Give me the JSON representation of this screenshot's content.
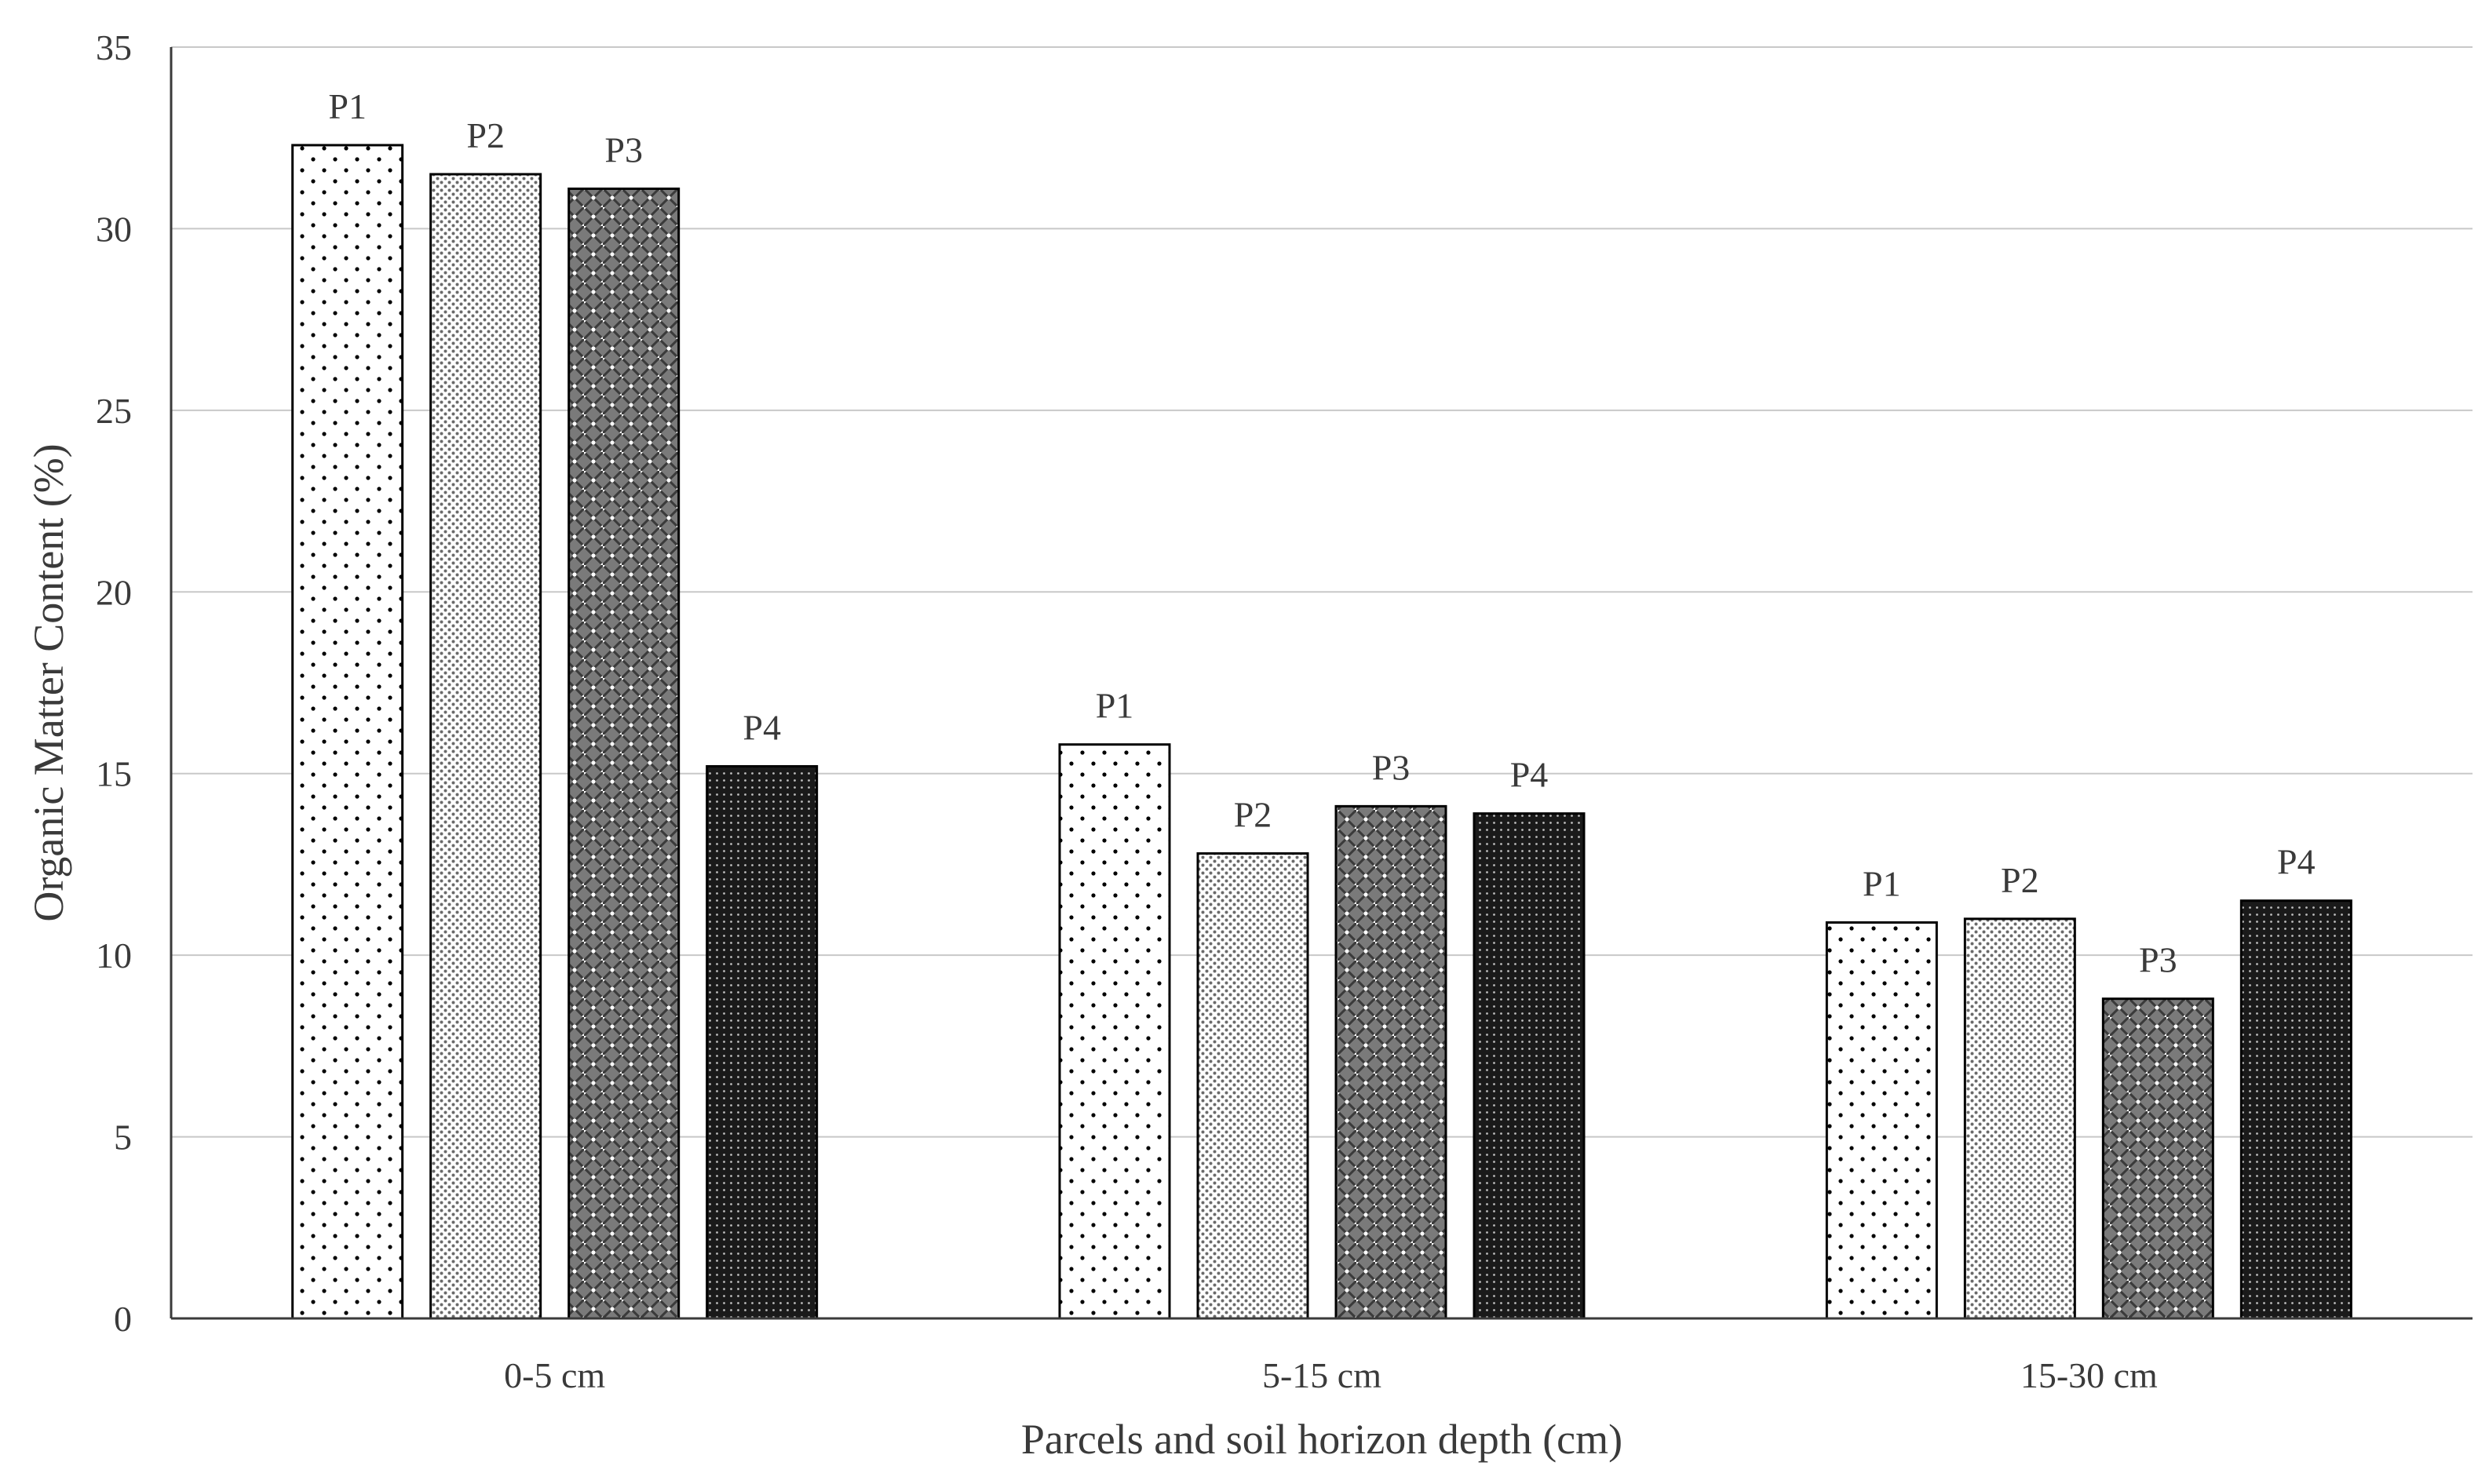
{
  "chart_data": {
    "type": "bar",
    "title": "",
    "xlabel": "Parcels and soil horizon depth (cm)",
    "ylabel": "Organic Matter Content (%)",
    "ylim": [
      0,
      35
    ],
    "yticks": [
      0,
      5,
      10,
      15,
      20,
      25,
      30,
      35
    ],
    "grid": true,
    "categories": [
      "0-5 cm",
      "5-15 cm",
      "15-30 cm"
    ],
    "series": [
      {
        "name": "P1",
        "pattern": "sparse-dots",
        "values": [
          32.3,
          15.8,
          10.9
        ]
      },
      {
        "name": "P2",
        "pattern": "fine-dots",
        "values": [
          31.5,
          12.8,
          11.0
        ]
      },
      {
        "name": "P3",
        "pattern": "crosshatch-dots",
        "values": [
          31.1,
          14.1,
          8.8
        ]
      },
      {
        "name": "P4",
        "pattern": "dense-dark",
        "values": [
          15.2,
          13.9,
          11.5
        ]
      }
    ],
    "colors": {
      "axis": "#3a3a3a",
      "grid": "#c8c8c8",
      "bar_edge": "#000000",
      "background": "#ffffff"
    }
  }
}
